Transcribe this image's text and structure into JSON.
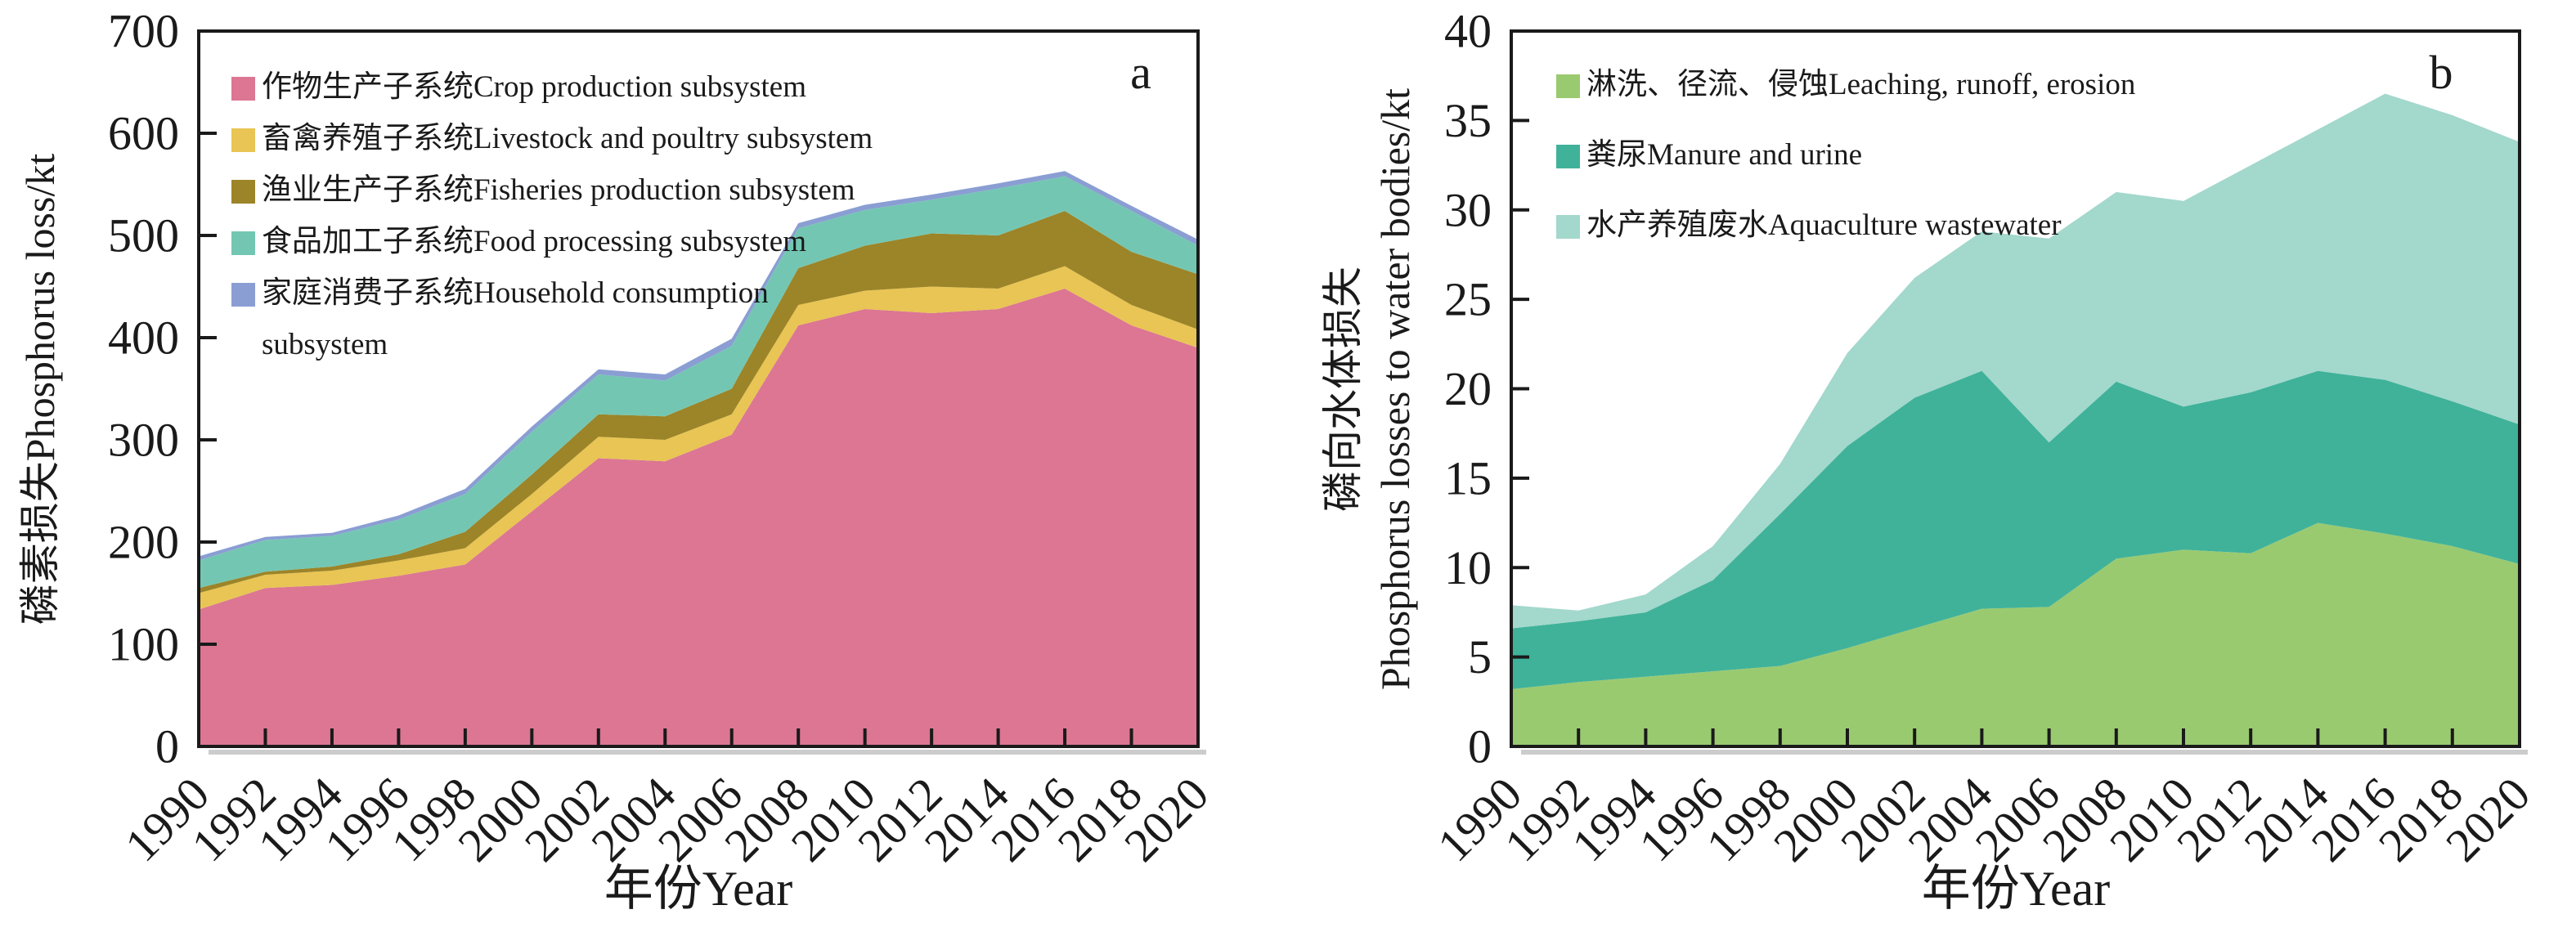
{
  "figure": {
    "background": "#ffffff",
    "axis_color": "#1a1a1a",
    "shadow_color": "#cccccc"
  },
  "chart_data": [
    {
      "type": "area",
      "stacked": true,
      "panel_label": "a",
      "xlabel": "年份Year",
      "ylabel_lines": [
        "磷素损失Phosphorus loss/kt"
      ],
      "x": [
        "1990",
        "1992",
        "1994",
        "1996",
        "1998",
        "2000",
        "2002",
        "2004",
        "2006",
        "2008",
        "2010",
        "2012",
        "2014",
        "2016",
        "2018",
        "2020"
      ],
      "ylim": [
        0,
        700
      ],
      "ytick_step": 100,
      "grid": false,
      "legend_position": "top-left",
      "series": [
        {
          "key": "crop-production",
          "name": "作物生产子系统Crop production subsystem",
          "legend_lines": [
            "作物生产子系统Crop production subsystem"
          ],
          "color": "#DC7693",
          "values": [
            134,
            155,
            158,
            167,
            178,
            230,
            282,
            279,
            305,
            412,
            428,
            424,
            428,
            448,
            412,
            390
          ]
        },
        {
          "key": "livestock-poultry",
          "name": "畜禽养殖子系统Livestock and poultry subsystem",
          "legend_lines": [
            "畜禽养殖子系统Livestock and poultry subsystem"
          ],
          "color": "#E8C554",
          "values": [
            16,
            13,
            14,
            15,
            16,
            17,
            21,
            21,
            20,
            20,
            18,
            26,
            20,
            22,
            20,
            18
          ]
        },
        {
          "key": "fisheries-production",
          "name": "渔业生产子系统Fisheries production subsystem",
          "legend_lines": [
            "渔业生产子系统Fisheries production subsystem"
          ],
          "color": "#9C8428",
          "values": [
            5,
            3,
            4,
            6,
            16,
            19,
            22,
            23,
            25,
            36,
            44,
            52,
            52,
            54,
            52,
            54
          ]
        },
        {
          "key": "food-processing",
          "name": "食品加工子系统Food processing subsystem",
          "legend_lines": [
            "食品加工子系统Food processing subsystem"
          ],
          "color": "#73C7B2",
          "values": [
            27,
            31,
            30,
            34,
            37,
            42,
            39,
            35,
            42,
            39,
            35,
            33,
            46,
            34,
            40,
            28
          ]
        },
        {
          "key": "household-consumption",
          "name": "家庭消费子系统Household consumption subsystem",
          "legend_lines": [
            "家庭消费子系统Household consumption",
            "subsystem"
          ],
          "color": "#8A9ED3",
          "values": [
            4,
            3,
            3,
            4,
            5,
            5,
            5,
            6,
            7,
            5,
            5,
            5,
            5,
            5,
            5,
            6
          ]
        }
      ]
    },
    {
      "type": "area",
      "stacked": true,
      "panel_label": "b",
      "xlabel": "年份Year",
      "ylabel_lines": [
        "磷向水体损失",
        "Phosphorus losses to water bodies/kt"
      ],
      "x": [
        "1990",
        "1992",
        "1994",
        "1996",
        "1998",
        "2000",
        "2002",
        "2004",
        "2006",
        "2008",
        "2010",
        "2012",
        "2014",
        "2016",
        "2018",
        "2020"
      ],
      "ylim": [
        0,
        40
      ],
      "ytick_step": 5,
      "grid": false,
      "legend_position": "top-left",
      "series": [
        {
          "key": "leaching-runoff-erosion",
          "name": "淋洗、径流、侵蚀Leaching, runoff, erosion",
          "legend_lines": [
            "淋洗、径流、侵蚀Leaching, runoff, erosion"
          ],
          "color": "#9ACA70",
          "values": [
            3.2,
            3.6,
            3.9,
            4.2,
            4.5,
            5.5,
            6.6,
            7.7,
            7.8,
            10.5,
            11.0,
            10.8,
            12.5,
            11.9,
            11.2,
            10.2
          ]
        },
        {
          "key": "manure-and-urine",
          "name": "粪尿Manure and urine",
          "legend_lines": [
            "粪尿Manure and urine"
          ],
          "color": "#40B29A",
          "values": [
            3.4,
            3.4,
            3.6,
            5.1,
            8.5,
            11.3,
            12.9,
            13.3,
            9.2,
            9.9,
            8.0,
            9.0,
            8.5,
            8.6,
            8.1,
            7.8
          ]
        },
        {
          "key": "aquaculture-wastewater",
          "name": "水产养殖废水Aquaculture wastewater",
          "legend_lines": [
            "水产养殖废水Aquaculture wastewater"
          ],
          "color": "#A3D8CC",
          "values": [
            1.3,
            0.6,
            1.0,
            1.9,
            2.8,
            5.2,
            6.7,
            7.8,
            11.4,
            10.6,
            11.5,
            12.7,
            13.5,
            16.0,
            16.0,
            15.8
          ]
        }
      ]
    }
  ]
}
